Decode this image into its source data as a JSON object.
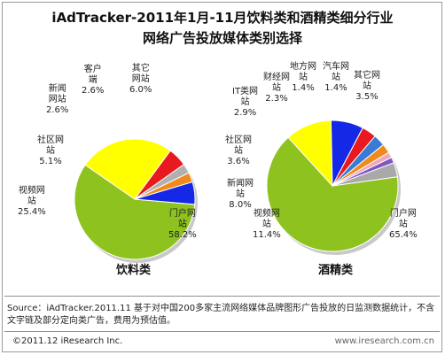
{
  "header": {
    "title_line1": "iAdTracker-2011年1月-11月饮料类和酒精类细分行业",
    "title_line2": "网络广告投放媒体类别选择"
  },
  "chart_data": [
    {
      "type": "pie",
      "caption": "饮料类",
      "slices": [
        {
          "label": "门户网站",
          "value": 58.2,
          "display": "58.2%",
          "color": "#8dc21f"
        },
        {
          "label": "视频网站",
          "value": 25.4,
          "display": "25.4%",
          "color": "#ffff00"
        },
        {
          "label": "社区网站",
          "value": 5.1,
          "display": "5.1%",
          "color": "#e8191f"
        },
        {
          "label": "新闻网站",
          "value": 2.6,
          "display": "2.6%",
          "color": "#b0b0b0"
        },
        {
          "label": "客户端",
          "value": 2.6,
          "display": "2.6%",
          "color": "#f08a1c"
        },
        {
          "label": "其它网站",
          "value": 6.0,
          "display": "6.0%",
          "color": "#1428e6"
        }
      ]
    },
    {
      "type": "pie",
      "caption": "酒精类",
      "slices": [
        {
          "label": "门户网站",
          "value": 65.4,
          "display": "65.4%",
          "color": "#8dc21f"
        },
        {
          "label": "视频网站",
          "value": 11.4,
          "display": "11.4%",
          "color": "#ffff00"
        },
        {
          "label": "新闻网站",
          "value": 8.0,
          "display": "8.0%",
          "color": "#1428e6"
        },
        {
          "label": "社区网站",
          "value": 3.6,
          "display": "3.6%",
          "color": "#e8191f"
        },
        {
          "label": "IT类网站",
          "value": 2.9,
          "display": "2.9%",
          "color": "#3a7bd5"
        },
        {
          "label": "财经网站",
          "value": 2.3,
          "display": "2.3%",
          "color": "#f08a1c"
        },
        {
          "label": "地方网站",
          "value": 1.4,
          "display": "1.4%",
          "color": "#f2a7b8"
        },
        {
          "label": "汽车网站",
          "value": 1.4,
          "display": "1.4%",
          "color": "#7e57c2"
        },
        {
          "label": "其它网站",
          "value": 3.5,
          "display": "3.5%",
          "color": "#a9a9a9"
        }
      ]
    }
  ],
  "labels": {
    "bev": [
      {
        "text": "门户网\n站\n58.2%"
      },
      {
        "text": "视频网\n站\n25.4%"
      },
      {
        "text": "社区网\n站\n5.1%"
      },
      {
        "text": "新闻\n网站\n2.6%"
      },
      {
        "text": "客户\n端\n2.6%"
      },
      {
        "text": "其它\n网站\n6.0%"
      }
    ],
    "alc": [
      {
        "text": "门户网\n站\n65.4%"
      },
      {
        "text": "视频网\n站\n11.4%"
      },
      {
        "text": "新闻网\n站\n8.0%"
      },
      {
        "text": "社区网\n站\n3.6%"
      },
      {
        "text": "IT类网\n站\n2.9%"
      },
      {
        "text": "财经网\n站\n2.3%"
      },
      {
        "text": "地方网\n站\n1.4%"
      },
      {
        "text": "汽车网\n站\n1.4%"
      },
      {
        "text": "其它网\n站\n3.5%"
      }
    ]
  },
  "footer": {
    "source": "Source：iAdTracker.2011.11 基于对中国200多家主流网络媒体品牌图形广告投放的日监测数据统计，不含文字链及部分定向类广告，费用为预估值。",
    "copyright": "©2011.12 iResearch Inc.",
    "site": "www.iresearch.com.cn"
  }
}
